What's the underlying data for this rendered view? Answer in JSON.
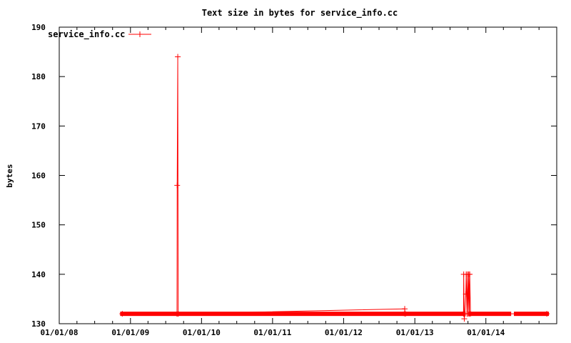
{
  "chart_data": {
    "type": "line",
    "title": "Text size in bytes for service_info.cc",
    "xlabel": "",
    "ylabel": "bytes",
    "xlim": [
      "2008-01-01",
      "2014-12-31"
    ],
    "ylim": [
      130,
      190
    ],
    "x_ticks": [
      {
        "date": "2008-01-01",
        "label": "01/01/08"
      },
      {
        "date": "2009-01-01",
        "label": "01/01/09"
      },
      {
        "date": "2010-01-01",
        "label": "01/01/10"
      },
      {
        "date": "2011-01-01",
        "label": "01/01/11"
      },
      {
        "date": "2012-01-01",
        "label": "01/01/12"
      },
      {
        "date": "2013-01-01",
        "label": "01/01/13"
      },
      {
        "date": "2014-01-01",
        "label": "01/01/14"
      }
    ],
    "y_ticks": [
      130,
      140,
      150,
      160,
      170,
      180,
      190
    ],
    "grid": false,
    "legend": "top-left",
    "series": [
      {
        "name": "service_info.cc",
        "color": "#ff0000",
        "marker": "plus",
        "points": [
          {
            "x": "2008-11-20",
            "y": 132
          },
          {
            "x": "2009-08-28",
            "y": 132
          },
          {
            "x": "2009-08-29",
            "y": 158
          },
          {
            "x": "2009-09-01",
            "y": 184
          },
          {
            "x": "2009-09-03",
            "y": 132
          },
          {
            "x": "2012-11-10",
            "y": 133
          },
          {
            "x": "2012-11-12",
            "y": 132
          },
          {
            "x": "2013-09-08",
            "y": 132
          },
          {
            "x": "2013-09-09",
            "y": 140
          },
          {
            "x": "2013-09-12",
            "y": 131
          },
          {
            "x": "2013-09-15",
            "y": 132
          },
          {
            "x": "2013-09-20",
            "y": 136
          },
          {
            "x": "2013-09-22",
            "y": 140
          },
          {
            "x": "2013-09-26",
            "y": 132
          },
          {
            "x": "2013-09-29",
            "y": 140
          },
          {
            "x": "2013-10-02",
            "y": 132
          },
          {
            "x": "2013-10-05",
            "y": 140
          },
          {
            "x": "2013-10-08",
            "y": 132
          },
          {
            "x": "2013-10-10",
            "y": 140
          },
          {
            "x": "2013-10-14",
            "y": 132
          },
          {
            "x": "2014-11-10",
            "y": 132
          }
        ],
        "dense_ranges": [
          {
            "start": "2008-11-20",
            "end": "2009-08-28",
            "y": 132
          },
          {
            "start": "2009-09-03",
            "end": "2012-11-10",
            "y": 132
          },
          {
            "start": "2012-11-12",
            "end": "2013-09-08",
            "y": 132
          },
          {
            "start": "2013-10-14",
            "end": "2014-04-30",
            "y": 132
          },
          {
            "start": "2014-06-05",
            "end": "2014-11-10",
            "y": 132
          }
        ]
      }
    ]
  }
}
